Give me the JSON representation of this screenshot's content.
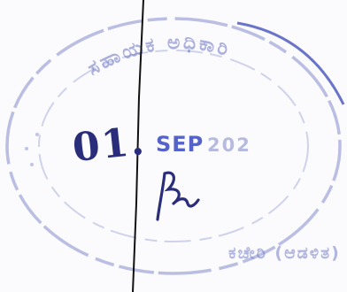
{
  "stamp": {
    "date_day": "01.",
    "date_month": "SEP",
    "date_year": "202",
    "top_text": "ಸಹಾಯಕ ಅಧಿಕಾರಿ",
    "bottom_text": "ಕಚೇರಿ (ಆಡಳಿತ)",
    "signature": "signature"
  },
  "colors": {
    "ink": "#2a2e7a",
    "stamp_ink": "#6a74c2",
    "line": "#111111",
    "paper": "#fbfbfd"
  }
}
